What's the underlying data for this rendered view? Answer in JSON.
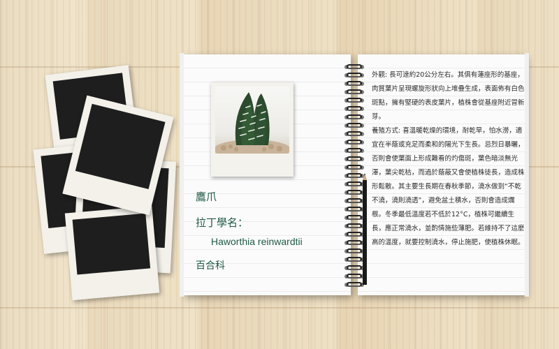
{
  "plant": {
    "common_name": "鷹爪",
    "latin_label": "拉丁學名：",
    "latin_name": "Haworthia reinwardtii",
    "family": "百合科"
  },
  "description": {
    "appearance": "外觀: 長可達約20公分左右。其俱有蓮座形的基座，肉質葉片呈現螺旋形狀向上堆疊生成，表面佈有白色斑點，擁有堅硬的表皮葉片，植株會從基座附近冒新芽。",
    "care": "養殖方式: 喜溫暖乾燥的環境，耐乾旱，怕水澇，適宜在半蔭或充足而柔和的陽光下生長。忌烈日暴曬，否則會使葉面上形成難看的灼傷斑，葉色暗淡無光澤，葉尖乾枯，而過於蔭蔽又會使植株徒長，造成株形鬆散。其主要生長期在春秋季節，澆水做到“不乾不澆，澆則澆透”，避免盆土積水，否則會造成爛根。冬季最低溫度若不低於12°C，植株可繼續生長，應正常澆水，並酌情施些薄肥。若維持不了這麼高的溫度，就要控制澆水，停止施肥，使植株休眠。"
  },
  "colors": {
    "title_green": "#1f5a45",
    "desk_wood": "#eedfc4"
  },
  "icons": [
    "spiral-binding-icon",
    "pencil-icon",
    "plant-photo"
  ]
}
